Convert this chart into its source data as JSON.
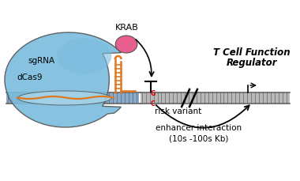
{
  "background_color": "#ffffff",
  "dcas9_color": "#7abcdd",
  "dcas9_color2": "#a8d4ea",
  "dcas9_outline": "#555555",
  "krab_color": "#e86090",
  "sgRNA_color": "#e07820",
  "dna_color": "#b8b8b8",
  "dna_color2": "#88aacc",
  "dna_outline": "#666666",
  "arrow_color": "#1a1a1a",
  "gc_color": "#cc0000",
  "label_dcas9": "dCas9",
  "label_sgRNA": "sgRNA",
  "label_krab": "KRAB",
  "label_risk": "risk variant",
  "label_enhancer": "enhancer interaction",
  "label_enhancer2": "(10s -100s Kb)",
  "label_regulator1": "T Cell Function",
  "label_regulator2": "Regulator"
}
